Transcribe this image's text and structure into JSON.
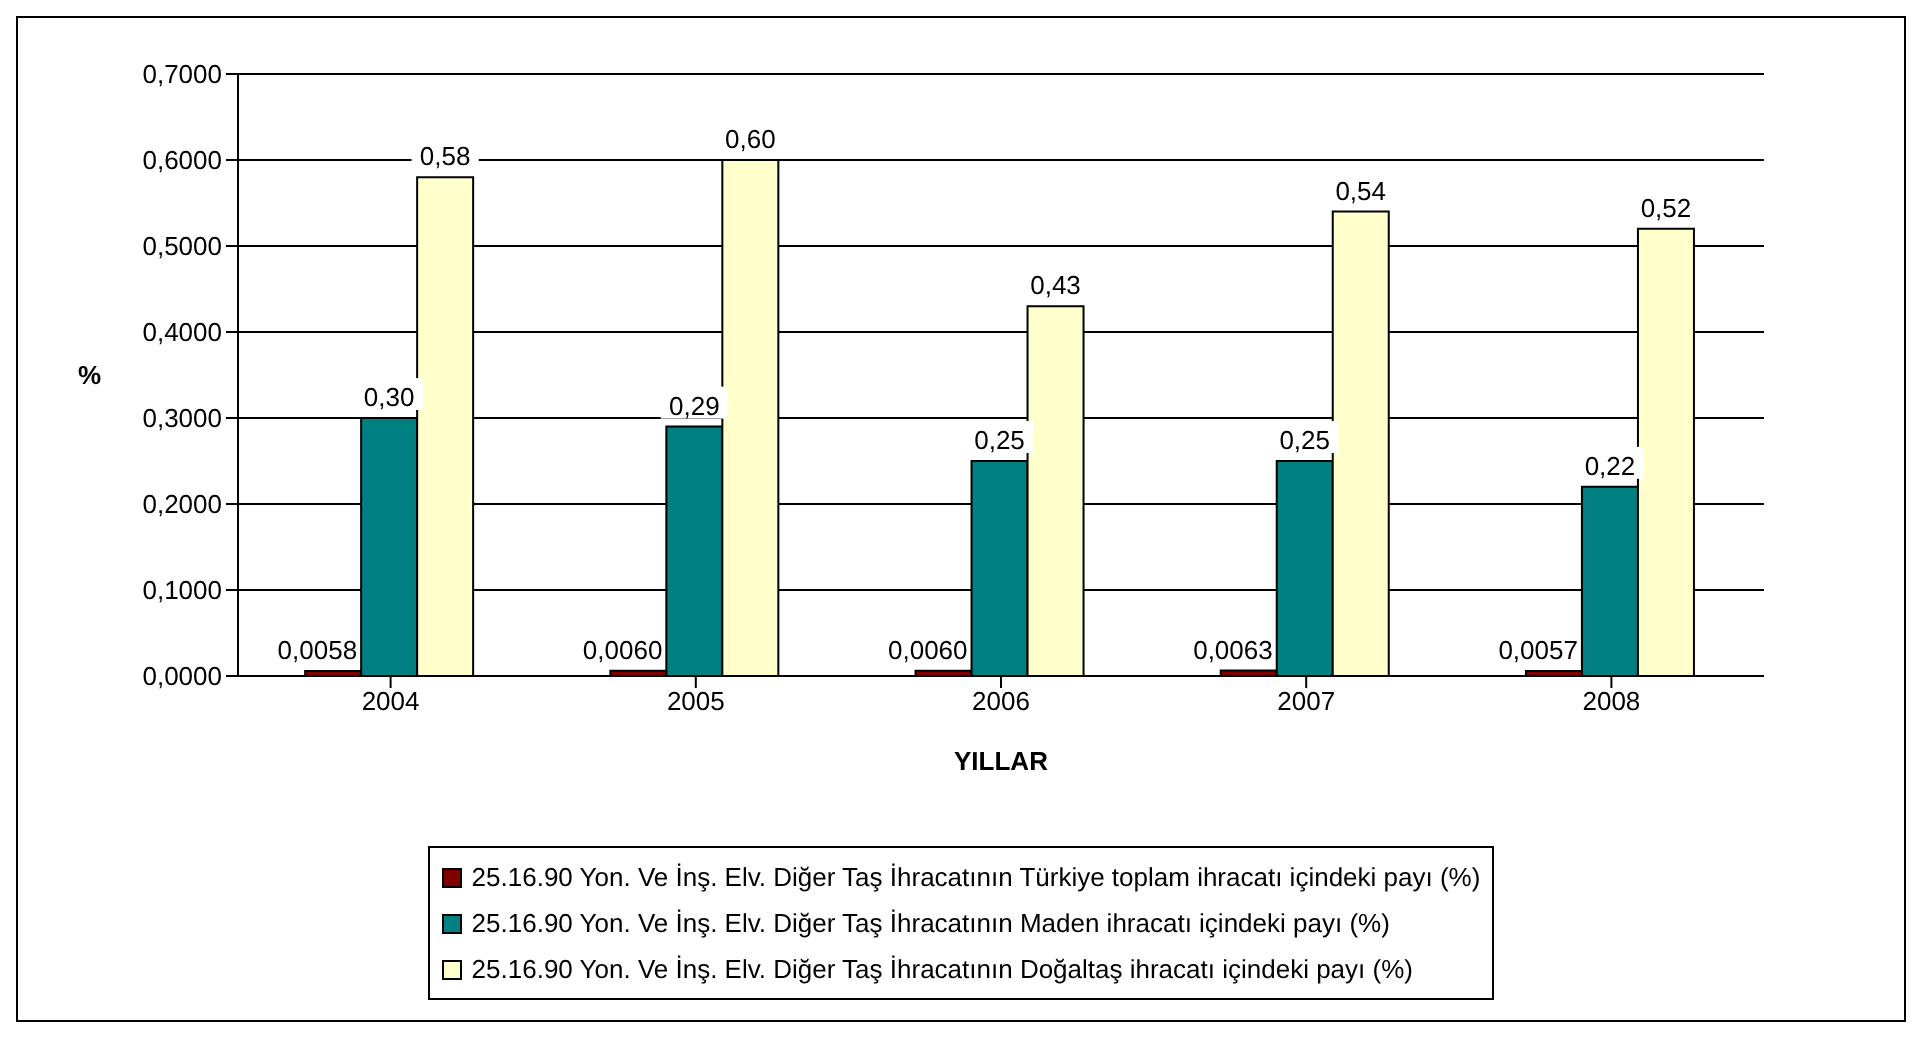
{
  "chart_data": {
    "type": "bar",
    "xlabel": "YILLAR",
    "ylabel": "%",
    "categories": [
      "2004",
      "2005",
      "2006",
      "2007",
      "2008"
    ],
    "series": [
      {
        "name": "25.16.90 Yon. Ve İnş. Elv. Diğer Taş İhracatının Türkiye toplam ihracatı içindeki payı (%)",
        "color": "#800000",
        "values": [
          0.0058,
          0.006,
          0.006,
          0.0063,
          0.0057
        ],
        "value_labels": [
          "0,0058",
          "0,0060",
          "0,0060",
          "0,0063",
          "0,0057"
        ]
      },
      {
        "name": "25.16.90 Yon. Ve İnş. Elv. Diğer Taş İhracatının Maden ihracatı içindeki payı (%)",
        "color": "#008080",
        "values": [
          0.3,
          0.29,
          0.25,
          0.25,
          0.22
        ],
        "value_labels": [
          "0,30",
          "0,29",
          "0,25",
          "0,25",
          "0,22"
        ]
      },
      {
        "name": "25.16.90 Yon. Ve İnş. Elv. Diğer Taş İhracatının Doğaltaş ihracatı içindeki payı (%)",
        "color": "#ffffcc",
        "values": [
          0.58,
          0.6,
          0.43,
          0.54,
          0.52
        ],
        "value_labels": [
          "0,58",
          "0,60",
          "0,43",
          "0,54",
          "0,52"
        ]
      }
    ],
    "ylim": [
      0,
      0.7
    ],
    "yticks": [
      {
        "value": 0,
        "label": "0,0000"
      },
      {
        "value": 0.1,
        "label": "0,1000"
      },
      {
        "value": 0.2,
        "label": "0,2000"
      },
      {
        "value": 0.3,
        "label": "0,3000"
      },
      {
        "value": 0.4,
        "label": "0,4000"
      },
      {
        "value": 0.5,
        "label": "0,5000"
      },
      {
        "value": 0.6,
        "label": "0,6000"
      },
      {
        "value": 0.7,
        "label": "0,7000"
      }
    ],
    "grid": "y",
    "legend": "bottom"
  }
}
